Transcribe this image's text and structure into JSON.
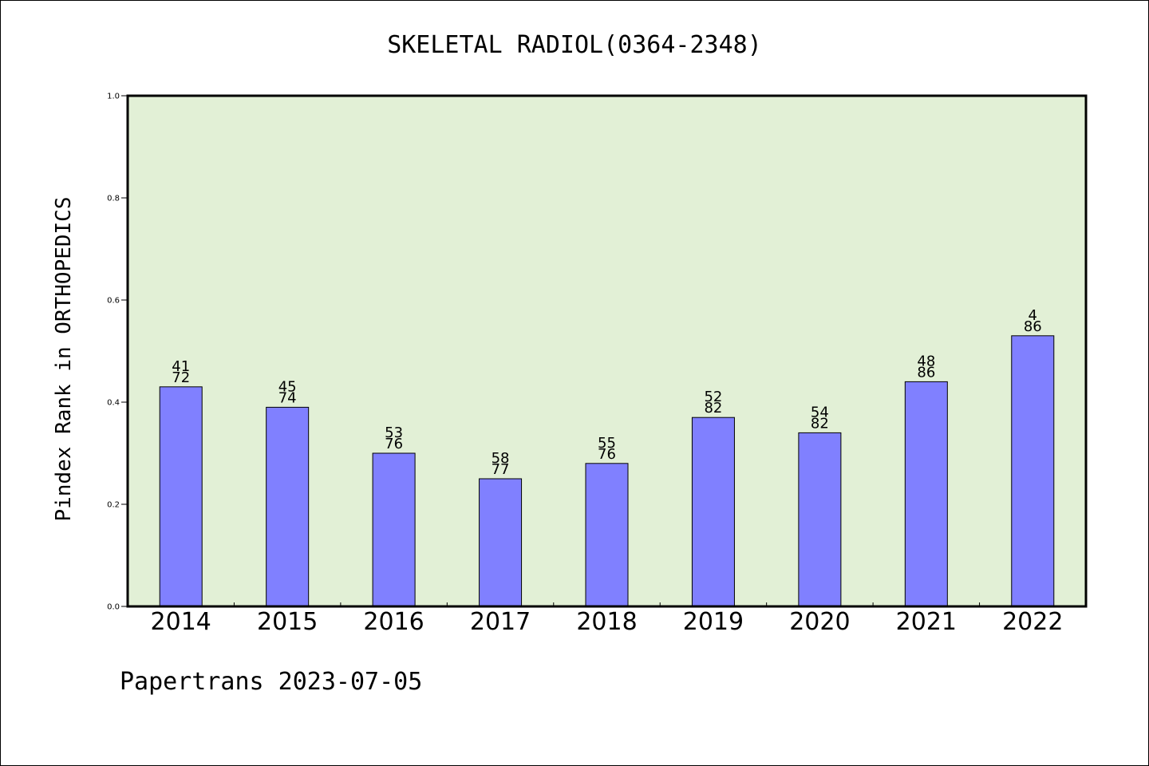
{
  "chart_data": {
    "type": "bar",
    "title": "SKELETAL RADIOL(0364-2348)",
    "xlabel": "",
    "ylabel": "Pindex Rank in ORTHOPEDICS",
    "ylim": [
      0.0,
      1.0
    ],
    "yticks": [
      "0.0",
      "0.2",
      "0.4",
      "0.6",
      "0.8",
      "1.0"
    ],
    "categories": [
      "2014",
      "2015",
      "2016",
      "2017",
      "2018",
      "2019",
      "2020",
      "2021",
      "2022"
    ],
    "values": [
      0.43,
      0.39,
      0.3,
      0.25,
      0.28,
      0.37,
      0.34,
      0.44,
      0.53
    ],
    "labels_top": [
      "41",
      "45",
      "53",
      "58",
      "55",
      "52",
      "54",
      "48",
      "4"
    ],
    "labels_bottom": [
      "72",
      "74",
      "76",
      "77",
      "76",
      "82",
      "82",
      "86",
      "86"
    ],
    "bar_color": "#8080ff",
    "plot_background": "#e2f0d6",
    "grid": false,
    "legend": "none"
  },
  "footer": "Papertrans 2023-07-05"
}
